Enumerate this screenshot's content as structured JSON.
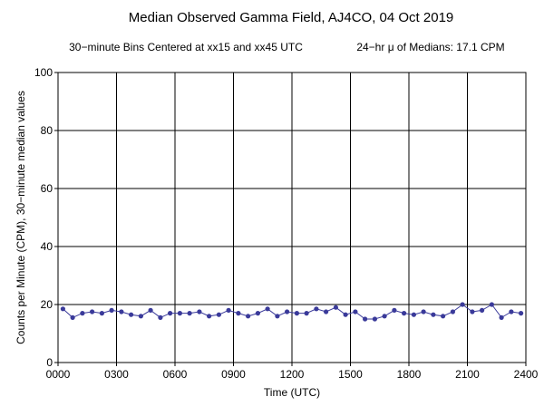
{
  "chart_data": {
    "type": "line",
    "title": "Median Observed Gamma Field, AJ4CO, 04 Oct 2019",
    "subtitle_left": "30−minute Bins Centered at xx15 and xx45 UTC",
    "subtitle_right": "24−hr μ of Medians: 17.1 CPM",
    "xlabel": "Time (UTC)",
    "ylabel": "Counts per Minute (CPM), 30−minute median values",
    "xlim": [
      0,
      2400
    ],
    "ylim": [
      0,
      100
    ],
    "x_tick_labels": [
      "0000",
      "0300",
      "0600",
      "0900",
      "1200",
      "1500",
      "1800",
      "2100",
      "2400"
    ],
    "y_tick_labels": [
      "0",
      "20",
      "40",
      "60",
      "80",
      "100"
    ],
    "grid": true,
    "series_color": "#3a3a9a",
    "series": [
      {
        "x": [
          "0015",
          "0045",
          "0115",
          "0145",
          "0215",
          "0245",
          "0315",
          "0345",
          "0415",
          "0445",
          "0515",
          "0545",
          "0615",
          "0645",
          "0715",
          "0745",
          "0815",
          "0845",
          "0915",
          "0945",
          "1015",
          "1045",
          "1115",
          "1145",
          "1215",
          "1245",
          "1315",
          "1345",
          "1415",
          "1445",
          "1515",
          "1545",
          "1615",
          "1645",
          "1715",
          "1745",
          "1815",
          "1845",
          "1915",
          "1945",
          "2015",
          "2045",
          "2115",
          "2145",
          "2215",
          "2245",
          "2315",
          "2345"
        ],
        "values": [
          18.5,
          15.5,
          17,
          17.5,
          17,
          18,
          17.5,
          16.5,
          16,
          18,
          15.5,
          17,
          17,
          17,
          17.5,
          16,
          16.5,
          18,
          17,
          16,
          17,
          18.5,
          16,
          17.5,
          17,
          17,
          18.5,
          17.5,
          19,
          16.5,
          17.5,
          15,
          15,
          16,
          18,
          17,
          16.5,
          17.5,
          16.5,
          16,
          17.5,
          20,
          17.5,
          18,
          20,
          15.5,
          17.5,
          17
        ]
      }
    ]
  }
}
